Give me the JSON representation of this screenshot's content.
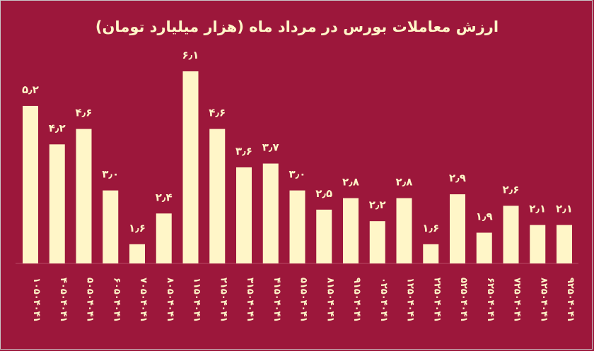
{
  "chart_data": {
    "type": "bar",
    "title": "ارزش معاملات بورس در مرداد ماه (هزار میلیارد تومان)",
    "xlabel": "",
    "ylabel": "",
    "ylim": [
      1.1,
      6.1
    ],
    "grid": false,
    "categories": [
      "۱۴۰۴۰۵۰۱",
      "۱۴۰۴۰۵۰۴",
      "۱۴۰۴۰۵۰۵",
      "۱۴۰۴۰۵۰۶",
      "۱۴۰۴۰۵۰۷",
      "۱۴۰۴۰۵۰۸",
      "۱۴۰۴۰۵۱۱",
      "۱۴۰۴۰۵۱۲",
      "۱۴۰۴۰۵۱۳",
      "۱۴۰۴۰۵۱۴",
      "۱۴۰۴۰۵۱۵",
      "۱۴۰۴۰۵۱۸",
      "۱۴۰۴۰۵۱۹",
      "۱۴۰۴۰۵۲۰",
      "۱۴۰۴۰۵۲۱",
      "۱۴۰۴۰۵۲۲",
      "۱۴۰۴۰۵۲۵",
      "۱۴۰۴۰۵۲۶",
      "۱۴۰۴۰۵۲۷",
      "۱۴۰۴۰۵۲۸",
      "۱۴۰۴۰۵۲۹"
    ],
    "values": [
      5.2,
      4.2,
      4.6,
      3.0,
      1.6,
      2.4,
      6.1,
      4.6,
      3.6,
      3.7,
      3.0,
      2.5,
      2.8,
      2.2,
      2.8,
      1.6,
      2.9,
      1.9,
      2.6,
      2.1,
      2.1
    ],
    "data_labels": [
      "۵٫۲",
      "۴٫۲",
      "۴٫۶",
      "۳٫۰",
      "۱٫۶",
      "۲٫۴",
      "۶٫۱",
      "۴٫۶",
      "۳٫۶",
      "۳٫۷",
      "۳٫۰",
      "۲٫۵",
      "۲٫۸",
      "۲٫۲",
      "۲٫۸",
      "۱٫۶",
      "۲٫۹",
      "۱٫۹",
      "۲٫۶",
      "۲٫۱",
      "۲٫۱"
    ],
    "colors": {
      "background": "#9c173b",
      "bar": "#fff6c8",
      "text": "#fff6c8"
    }
  }
}
